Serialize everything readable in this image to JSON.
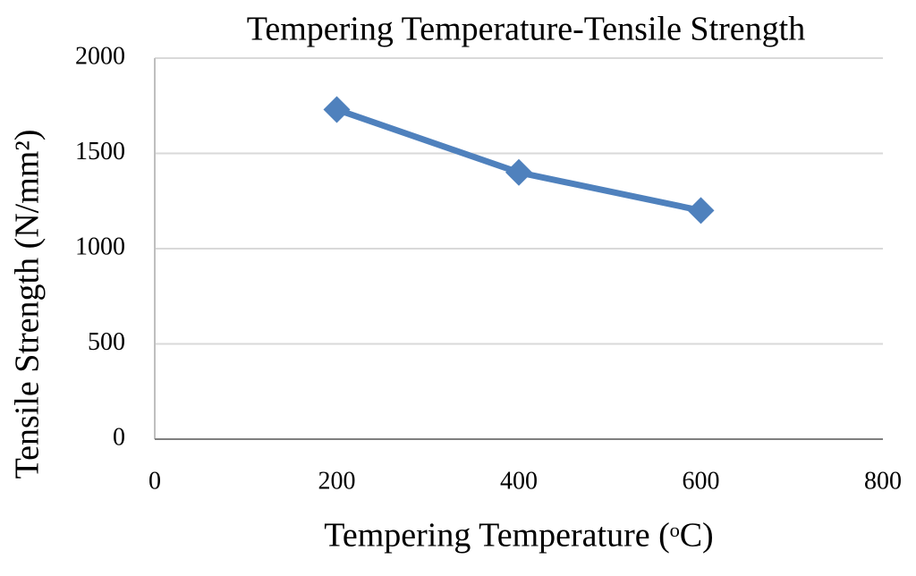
{
  "chart_data": {
    "type": "line",
    "title": "Tempering Temperature-Tensile Strength",
    "x_label": "Tempering Temperature (ᵒC)",
    "y_label": "Tensile Strength (N/mm²)",
    "x": [
      200,
      400,
      600
    ],
    "series": [
      {
        "name": "Tensile Strength",
        "color": "#4f81bd",
        "values": [
          1730,
          1400,
          1200
        ]
      }
    ],
    "xlim": [
      0,
      800
    ],
    "xticks": [
      0,
      200,
      400,
      600,
      800
    ],
    "ylim": [
      0,
      2000
    ],
    "yticks": [
      0,
      500,
      1000,
      1500,
      2000
    ],
    "grid": true
  }
}
